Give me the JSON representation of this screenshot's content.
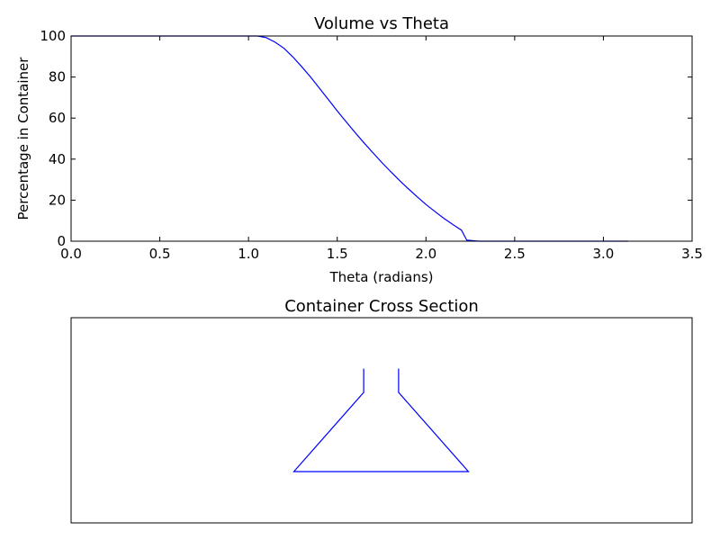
{
  "chart_data": [
    {
      "type": "line",
      "title": "Volume vs Theta",
      "xlabel": "Theta (radians)",
      "ylabel": "Percentage in Container",
      "xlim": [
        0.0,
        3.5
      ],
      "ylim": [
        0,
        100
      ],
      "xticks": [
        "0.0",
        "0.5",
        "1.0",
        "1.5",
        "2.0",
        "2.5",
        "3.0",
        "3.5"
      ],
      "yticks": [
        "0",
        "20",
        "40",
        "60",
        "80",
        "100"
      ],
      "grid": false,
      "line_color": "#0000ff",
      "series": [
        {
          "x": [
            0.0,
            0.2,
            0.4,
            0.6,
            0.8,
            1.0,
            1.05,
            1.1,
            1.15,
            1.2,
            1.25,
            1.3,
            1.35,
            1.4,
            1.45,
            1.5,
            1.55,
            1.6,
            1.65,
            1.7,
            1.75,
            1.8,
            1.85,
            1.9,
            1.95,
            2.0,
            2.05,
            2.1,
            2.15,
            2.2,
            2.23,
            2.3,
            2.5,
            2.7,
            2.9,
            3.1,
            3.14
          ],
          "y": [
            100,
            100,
            100,
            100,
            100,
            100,
            100,
            99.2,
            97,
            94,
            89.8,
            85,
            80,
            74.5,
            69,
            63.5,
            58.2,
            53,
            48,
            43.2,
            38.5,
            34,
            29.7,
            25.6,
            21.7,
            17.9,
            14.5,
            11.2,
            8.2,
            5.4,
            0.5,
            0,
            0,
            0,
            0,
            0,
            0
          ]
        }
      ]
    },
    {
      "type": "line",
      "title": "Container Cross Section",
      "axes_visible": false,
      "line_color": "#0000ff",
      "series": [
        {
          "x": [
            -0.2,
            -0.2,
            -1.0,
            1.0,
            0.2,
            0.2
          ],
          "y": [
            1.3,
            1.0,
            0.0,
            0.0,
            1.0,
            1.3
          ]
        }
      ]
    }
  ]
}
